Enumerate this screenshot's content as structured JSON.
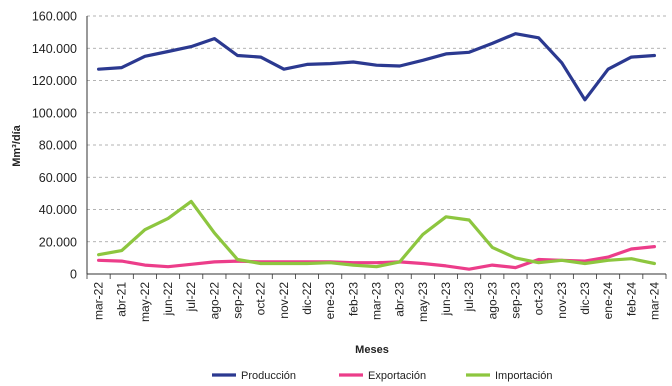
{
  "chart_data": {
    "type": "line",
    "xlabel": "Meses",
    "ylabel": "Mm³/día",
    "ylim": [
      0,
      160000
    ],
    "y_ticks": [
      "0",
      "20.000",
      "40.000",
      "60.000",
      "80.000",
      "100.000",
      "120.000",
      "140.000",
      "160.000"
    ],
    "grid": "horizontal-dashed",
    "legend_position": "bottom",
    "categories": [
      "mar-22",
      "abr-21",
      "may-22",
      "jun-22",
      "jul-22",
      "ago-22",
      "sep-22",
      "oct-22",
      "nov-22",
      "dic-22",
      "ene-23",
      "feb-23",
      "mar-23",
      "abr-23",
      "may-23",
      "jun-23",
      "jul-23",
      "ago-23",
      "sep-23",
      "oct-23",
      "nov-23",
      "dic-23",
      "ene-24",
      "feb-24",
      "mar-24"
    ],
    "series": [
      {
        "name": "Producción",
        "color": "#2b3990",
        "values": [
          127000,
          128000,
          135000,
          138000,
          141000,
          146000,
          135500,
          134500,
          127000,
          130000,
          130500,
          131500,
          129500,
          129000,
          132500,
          136500,
          137500,
          143000,
          149000,
          146500,
          131000,
          108000,
          127000,
          134500,
          135500
        ]
      },
      {
        "name": "Exportación",
        "color": "#ec3d8a",
        "values": [
          8500,
          8000,
          5500,
          4500,
          6000,
          7500,
          8000,
          7500,
          7500,
          7500,
          7500,
          7000,
          7000,
          7500,
          6500,
          5000,
          3000,
          5500,
          4000,
          9000,
          8500,
          8000,
          10500,
          15500,
          17000
        ]
      },
      {
        "name": "Importación",
        "color": "#8dc63f",
        "values": [
          12000,
          14500,
          27500,
          34500,
          45000,
          25500,
          9000,
          6500,
          6500,
          6500,
          7000,
          5500,
          4500,
          7500,
          24500,
          35500,
          33500,
          16500,
          10000,
          7000,
          8500,
          6500,
          8500,
          9500,
          6500
        ]
      }
    ]
  }
}
